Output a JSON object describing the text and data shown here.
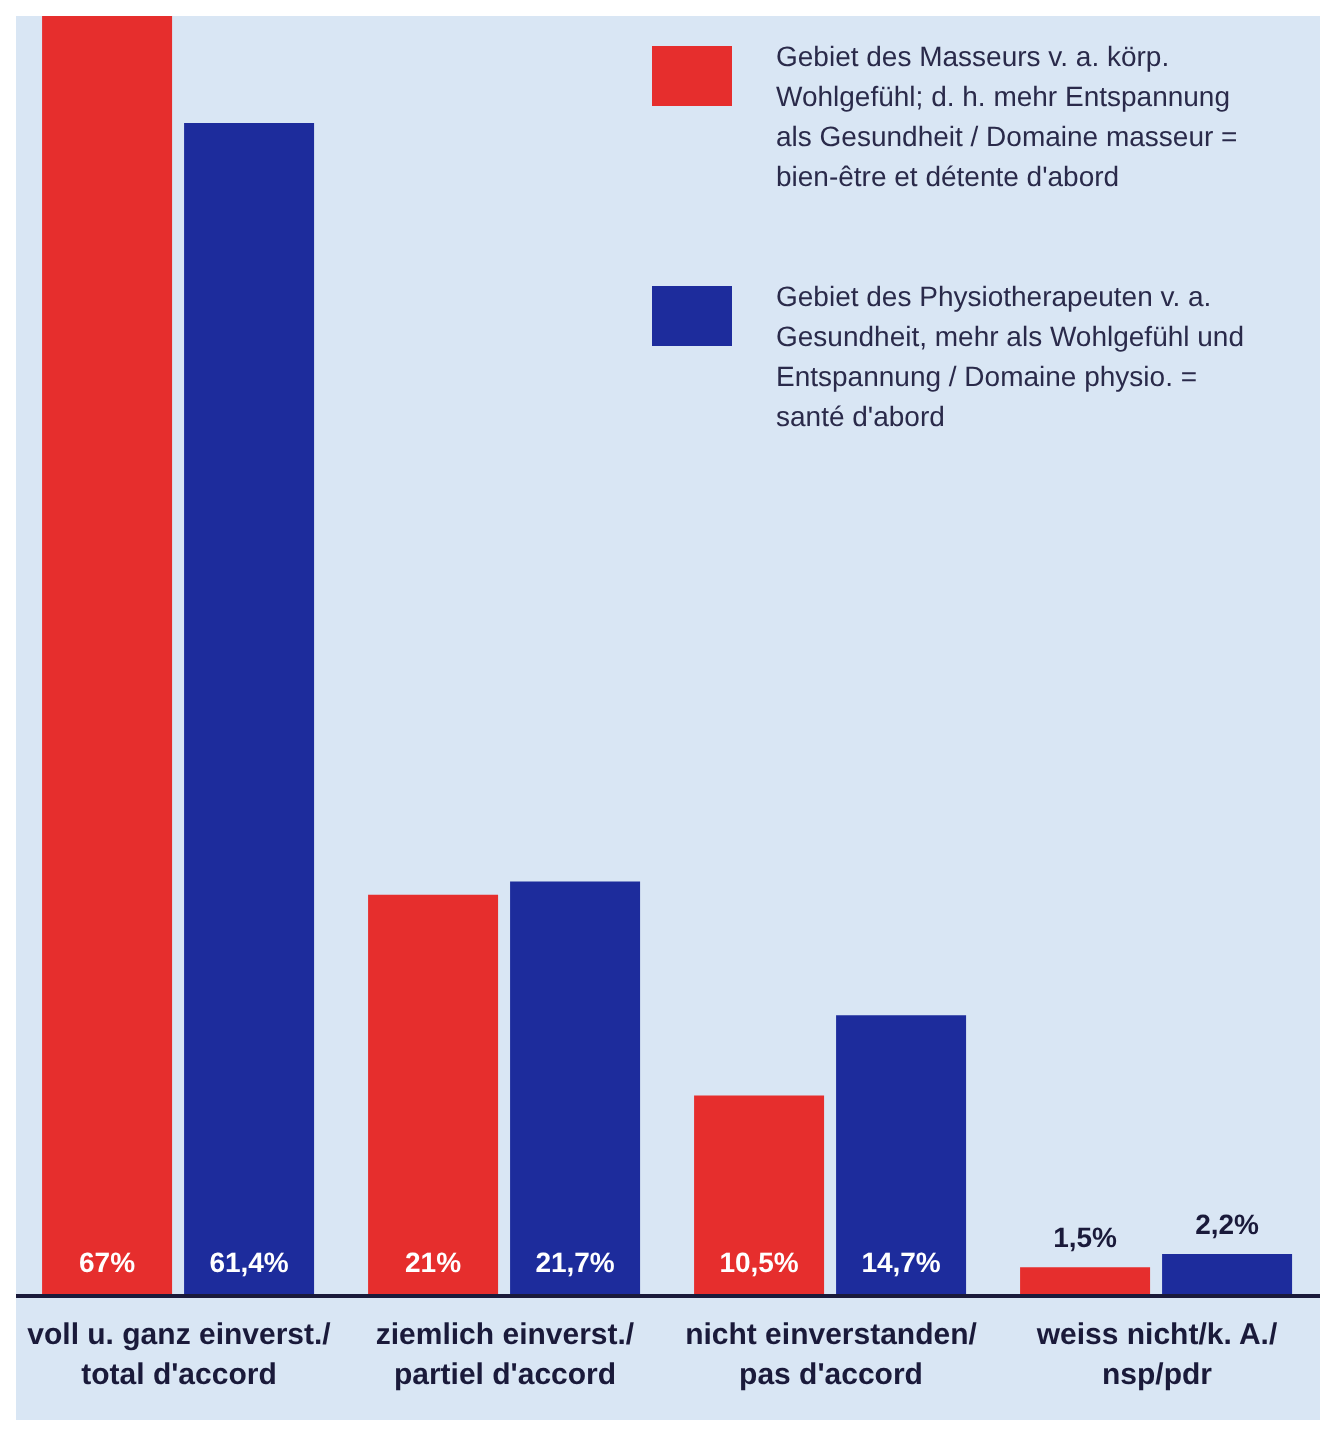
{
  "chart_data": {
    "type": "bar",
    "categories": [
      "voll u. ganz einverst./\ntotal d'accord",
      "ziemlich einverst./\npartiel d'accord",
      "nicht einverstanden/\npas d'accord",
      "weiss nicht/k. A./\nnsp/pdr"
    ],
    "series": [
      {
        "name": "Gebiet des Masseurs v. a. körp. Wohlgefühl; d. h. mehr Entspannung als Gesundheit / Domaine masseur = bien-être et détente d'abord",
        "color": "#e62e2d",
        "values": [
          67,
          21,
          10.5,
          1.5
        ],
        "value_labels": [
          "67%",
          "21%",
          "10,5%",
          "1,5%"
        ]
      },
      {
        "name": "Gebiet des Physiotherapeuten v. a. Gesundheit, mehr als Wohlgefühl und Entspannung / Domaine physio. = santé d'abord",
        "color": "#1d2c9c",
        "values": [
          61.4,
          21.7,
          14.7,
          2.2
        ],
        "value_labels": [
          "61,4%",
          "21,7%",
          "14,7%",
          "2,2%"
        ]
      }
    ],
    "legend": "top right",
    "grid": false
  }
}
